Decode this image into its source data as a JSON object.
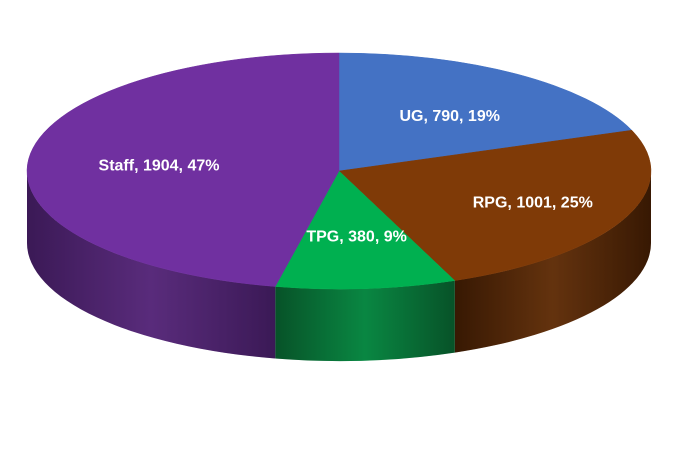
{
  "chart_data": {
    "type": "pie",
    "style": "3d",
    "slices": [
      {
        "label": "UG, 790, 19%",
        "name": "UG",
        "value": 790,
        "percent": 19,
        "color": "#4472C4",
        "side_color": "#2F4F8A"
      },
      {
        "label": "RPG, 1001, 25%",
        "name": "RPG",
        "value": 1001,
        "percent": 25,
        "color": "#7F3A07",
        "side_color": "#4A2104"
      },
      {
        "label": "TPG, 380, 9%",
        "name": "TPG",
        "value": 380,
        "percent": 9,
        "color": "#00B050",
        "side_color": "#0A6E36"
      },
      {
        "label": "Staff, 1904, 47%",
        "name": "Staff",
        "value": 1904,
        "percent": 47,
        "color": "#7030A0",
        "side_color": "#4F2273"
      }
    ]
  }
}
